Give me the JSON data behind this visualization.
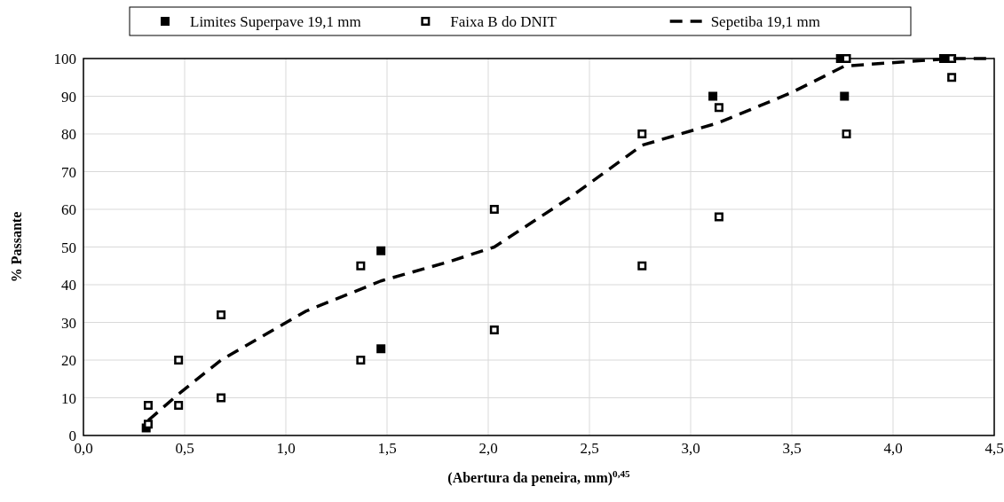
{
  "chart_data": {
    "type": "scatter",
    "xlabel": "(Abertura da peneira, mm)$^{0,45}$",
    "ylabel": "% Passante",
    "xlim": [
      0,
      4.5
    ],
    "xticks": [
      {
        "value": 0,
        "label": "0,0"
      },
      {
        "value": 0.5,
        "label": "0,5"
      },
      {
        "value": 1,
        "label": "1,0"
      },
      {
        "value": 1.5,
        "label": "1,5"
      },
      {
        "value": 2,
        "label": "2,0"
      },
      {
        "value": 2.5,
        "label": "2,5"
      },
      {
        "value": 3,
        "label": "3,0"
      },
      {
        "value": 3.5,
        "label": "3,5"
      },
      {
        "value": 4,
        "label": "4,0"
      },
      {
        "value": 4.5,
        "label": "4,5"
      }
    ],
    "ylim": [
      0,
      100
    ],
    "yticks": [
      0,
      10,
      20,
      30,
      40,
      50,
      60,
      70,
      80,
      90,
      100
    ],
    "grid": true,
    "legend": "top",
    "series": [
      {
        "name": "Limites Superpave 19,1 mm",
        "color": "#000000",
        "marker": "square",
        "x": [
          0.31,
          1.47,
          1.47,
          3.11,
          3.74,
          3.76,
          4.25
        ],
        "values": [
          2,
          49,
          23,
          90,
          100,
          90,
          100
        ]
      },
      {
        "name": "Faixa B do DNIT",
        "color": "#000000",
        "marker": "square-open",
        "x": [
          0.32,
          0.32,
          0.47,
          0.47,
          0.68,
          0.68,
          1.37,
          1.37,
          2.03,
          2.03,
          2.76,
          2.76,
          3.14,
          3.14,
          3.77,
          3.77,
          4.29,
          4.29
        ],
        "values": [
          8,
          3,
          20,
          8,
          32,
          10,
          45,
          20,
          60,
          28,
          80,
          45,
          87,
          58,
          100,
          80,
          100,
          95
        ]
      },
      {
        "name": "Sepetiba 19,1 mm",
        "type": "line",
        "color": "#000000",
        "line_style": "dashed",
        "marker": "none",
        "x": [
          0.32,
          0.47,
          0.68,
          1.1,
          1.47,
          1.8,
          2.03,
          2.4,
          2.76,
          3.14,
          3.5,
          3.76,
          4.29,
          4.5
        ],
        "values": [
          4,
          11,
          20,
          33,
          41,
          46,
          50,
          63,
          77,
          83,
          91,
          98,
          100,
          100
        ]
      }
    ]
  }
}
